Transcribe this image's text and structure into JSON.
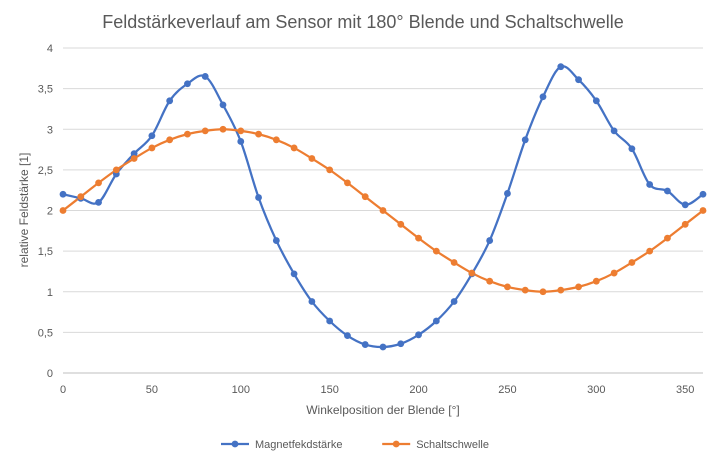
{
  "chart_data": {
    "type": "line",
    "title": "Feldstärkeverlauf am Sensor mit 180° Blende und Schaltschwelle",
    "xlabel": "Winkelposition der Blende [°]",
    "ylabel": "relative Feldstärke [1]",
    "xlim": [
      0,
      360
    ],
    "ylim": [
      0,
      4
    ],
    "x_ticks": [
      0,
      50,
      100,
      150,
      200,
      250,
      300,
      350
    ],
    "x_tick_labels": [
      "0",
      "50",
      "100",
      "150",
      "200",
      "250",
      "300",
      "350"
    ],
    "y_ticks": [
      0,
      0.5,
      1,
      1.5,
      2,
      2.5,
      3,
      3.5,
      4
    ],
    "y_tick_labels": [
      "0",
      "0,5",
      "1",
      "1,5",
      "2",
      "2,5",
      "3",
      "3,5",
      "4"
    ],
    "grid": "horizontal",
    "legend_position": "bottom",
    "x": [
      0,
      10,
      20,
      30,
      40,
      50,
      60,
      70,
      80,
      90,
      100,
      110,
      120,
      130,
      140,
      150,
      160,
      170,
      180,
      190,
      200,
      210,
      220,
      230,
      240,
      250,
      260,
      270,
      280,
      290,
      300,
      310,
      320,
      330,
      340,
      350,
      360
    ],
    "series": [
      {
        "name": "Magnetfekdstärke",
        "color": "#4472C4",
        "values": [
          2.2,
          2.15,
          2.1,
          2.45,
          2.7,
          2.92,
          3.35,
          3.56,
          3.65,
          3.3,
          2.85,
          2.16,
          1.63,
          1.22,
          0.88,
          0.64,
          0.46,
          0.35,
          0.32,
          0.36,
          0.47,
          0.64,
          0.88,
          1.22,
          1.63,
          2.21,
          2.87,
          3.4,
          3.77,
          3.61,
          3.35,
          2.98,
          2.76,
          2.32,
          2.24,
          2.07,
          2.2
        ]
      },
      {
        "name": "Schaltschwelle",
        "color": "#ED7D31",
        "values": [
          2.0,
          2.17,
          2.34,
          2.5,
          2.64,
          2.77,
          2.87,
          2.94,
          2.98,
          3.0,
          2.98,
          2.94,
          2.87,
          2.77,
          2.64,
          2.5,
          2.34,
          2.17,
          2.0,
          1.83,
          1.66,
          1.5,
          1.36,
          1.23,
          1.13,
          1.06,
          1.02,
          1.0,
          1.02,
          1.06,
          1.13,
          1.23,
          1.36,
          1.5,
          1.66,
          1.83,
          2.0
        ]
      }
    ]
  }
}
